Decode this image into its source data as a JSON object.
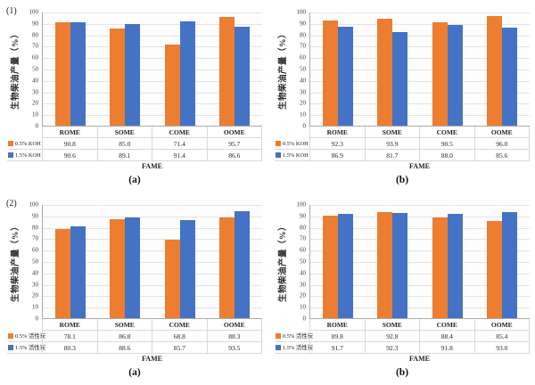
{
  "figure": {
    "background": "#ffffff",
    "colors": {
      "series1": "#ED7D31",
      "series2": "#4472C4",
      "gridline": "#E4E4E4",
      "axis_line": "#ABABAB",
      "table_border": "#D9D9D9"
    },
    "row_labels": [
      "(1)",
      "(2)"
    ]
  },
  "chart_data": [
    {
      "type": "bar",
      "panel_label": "(1)",
      "caption": "(a)",
      "ylabel": "生物柴油产量（%）",
      "xlabel": "FAME",
      "ylim": [
        0,
        100
      ],
      "yticks": [
        0,
        10,
        20,
        30,
        40,
        50,
        60,
        70,
        80,
        90,
        100
      ],
      "grid": true,
      "legend_position": "table-left",
      "categories": [
        "ROME",
        "SOME",
        "COME",
        "OOME"
      ],
      "series": [
        {
          "name": "0.5% KOH",
          "color": "#ED7D31",
          "values": [
            90.8,
            85.0,
            71.4,
            95.7
          ]
        },
        {
          "name": "1.5% KOH",
          "color": "#4472C4",
          "values": [
            90.6,
            89.1,
            91.4,
            86.6
          ]
        }
      ]
    },
    {
      "type": "bar",
      "panel_label": "",
      "caption": "(b)",
      "ylabel": "生物柴油产量（%）",
      "xlabel": "FAME",
      "ylim": [
        0,
        100
      ],
      "yticks": [
        0,
        10,
        20,
        30,
        40,
        50,
        60,
        70,
        80,
        90,
        100
      ],
      "grid": true,
      "legend_position": "table-left",
      "categories": [
        "ROME",
        "SOME",
        "COME",
        "OOME"
      ],
      "series": [
        {
          "name": "0.5% KOH",
          "color": "#ED7D31",
          "values": [
            92.3,
            93.9,
            90.5,
            96.0
          ]
        },
        {
          "name": "1.5% KOH",
          "color": "#4472C4",
          "values": [
            86.9,
            81.7,
            88.0,
            85.6
          ]
        }
      ]
    },
    {
      "type": "bar",
      "panel_label": "(2)",
      "caption": "(a)",
      "ylabel": "生物柴油产量（%）",
      "xlabel": "FAME",
      "ylim": [
        0,
        100
      ],
      "yticks": [
        0,
        10,
        20,
        30,
        40,
        50,
        60,
        70,
        80,
        90,
        100
      ],
      "grid": true,
      "legend_position": "table-left",
      "categories": [
        "ROME",
        "SOME",
        "COME",
        "OOME"
      ],
      "series": [
        {
          "name": "0.5% 活性炭",
          "color": "#ED7D31",
          "values": [
            78.1,
            86.8,
            68.8,
            88.3
          ]
        },
        {
          "name": "1.5% 活性炭",
          "color": "#4472C4",
          "values": [
            80.3,
            88.6,
            85.7,
            93.5
          ]
        }
      ]
    },
    {
      "type": "bar",
      "panel_label": "",
      "caption": "(b)",
      "ylabel": "生物柴油产量（%）",
      "xlabel": "FAME",
      "ylim": [
        0,
        100
      ],
      "yticks": [
        0,
        10,
        20,
        30,
        40,
        50,
        60,
        70,
        80,
        90,
        100
      ],
      "grid": true,
      "legend_position": "table-left",
      "categories": [
        "ROME",
        "SOME",
        "COME",
        "OOME"
      ],
      "series": [
        {
          "name": "0.5% 活性炭",
          "color": "#ED7D31",
          "values": [
            89.8,
            92.8,
            88.4,
            85.4
          ]
        },
        {
          "name": "1.5% 活性炭",
          "color": "#4472C4",
          "values": [
            91.7,
            92.3,
            91.8,
            93.0
          ]
        }
      ]
    }
  ]
}
